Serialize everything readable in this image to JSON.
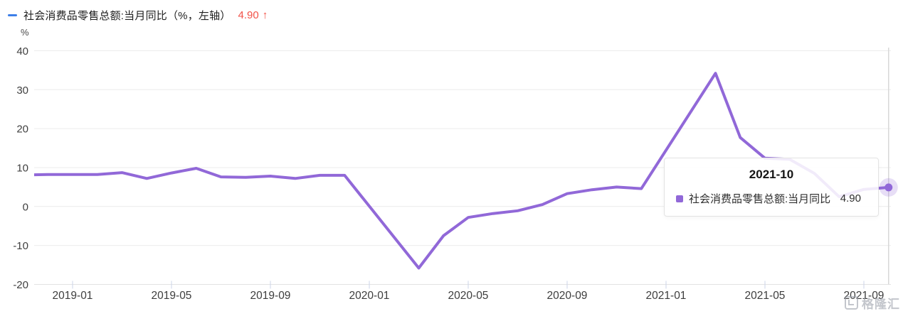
{
  "header": {
    "title": "社会消费品零售总额:当月同比（%，左轴）",
    "value": "4.90",
    "arrow": "↑",
    "legend_dash_color": "#3d7fe8",
    "value_color": "#f25248"
  },
  "chart_data": {
    "type": "line",
    "title": "社会消费品零售总额:当月同比（%，左轴）",
    "ylabel": "%",
    "ylim": [
      -20,
      40
    ],
    "y_ticks": [
      40,
      30,
      20,
      10,
      0,
      -10,
      -20
    ],
    "grid": true,
    "legend_position": "top-left",
    "x_tick_labels": [
      "2019-01",
      "2019-05",
      "2019-09",
      "2020-01",
      "2020-05",
      "2020-09",
      "2021-01",
      "2021-05",
      "2021-09"
    ],
    "categories": [
      "2018-11",
      "2018-12",
      "2019-01",
      "2019-02",
      "2019-03",
      "2019-04",
      "2019-05",
      "2019-06",
      "2019-07",
      "2019-08",
      "2019-09",
      "2019-10",
      "2019-11",
      "2019-12",
      "2020-01",
      "2020-02",
      "2020-03",
      "2020-04",
      "2020-05",
      "2020-06",
      "2020-07",
      "2020-08",
      "2020-09",
      "2020-10",
      "2020-11",
      "2020-12",
      "2021-01",
      "2021-02",
      "2021-03",
      "2021-04",
      "2021-05",
      "2021-06",
      "2021-07",
      "2021-08",
      "2021-09",
      "2021-10"
    ],
    "series": [
      {
        "name": "社会消费品零售总额:当月同比",
        "color": "#9168d8",
        "halo_color": "rgba(145,104,216,0.22)",
        "values": [
          8.1,
          8.2,
          8.2,
          8.2,
          8.7,
          7.2,
          8.6,
          9.8,
          7.6,
          7.5,
          7.8,
          7.2,
          8.0,
          8.0,
          null,
          null,
          -15.8,
          -7.5,
          -2.8,
          -1.8,
          -1.1,
          0.5,
          3.3,
          4.3,
          5.0,
          4.6,
          null,
          null,
          34.2,
          17.7,
          12.4,
          12.1,
          8.5,
          2.5,
          4.4,
          4.9
        ]
      }
    ],
    "highlight": {
      "category": "2021-10",
      "value": 4.9
    }
  },
  "tooltip": {
    "title": "2021-10",
    "series_label": "社会消费品零售总额:当月同比",
    "value": "4.90",
    "marker_color": "#9168d8"
  },
  "watermark": {
    "text": "格隆汇"
  }
}
